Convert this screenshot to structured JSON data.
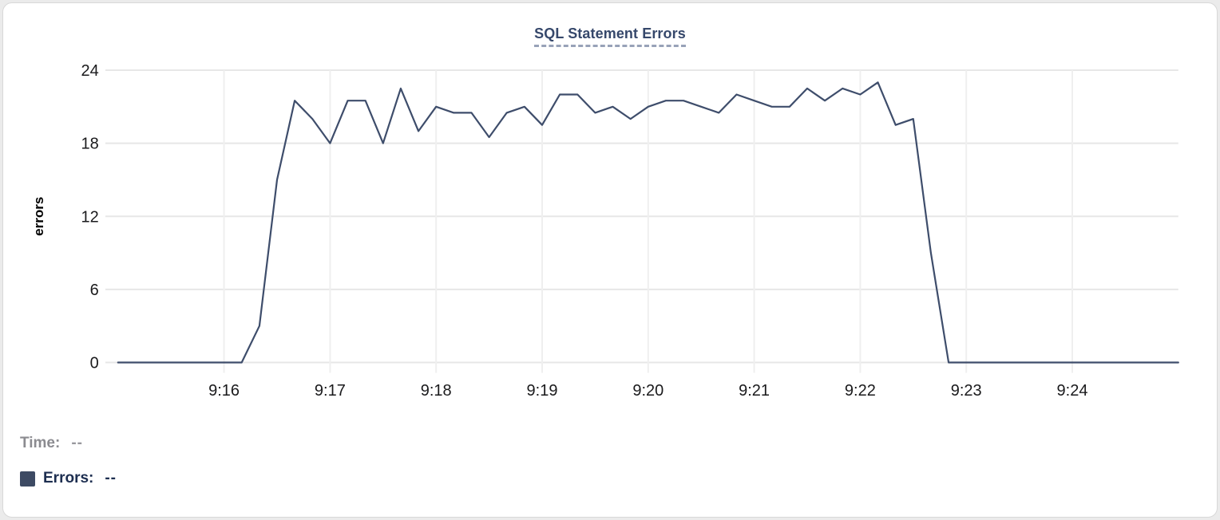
{
  "chart": {
    "title": "SQL Statement Errors",
    "ylabel": "errors",
    "line_color": "#3e4d6b",
    "grid_color_h": "#e7e7e7",
    "grid_color_v": "#efefef",
    "tick_label_color": "#1a1a1c",
    "title_color": "#36486b",
    "title_underline_color": "#98a2b8"
  },
  "chart_data": {
    "type": "line",
    "title": "SQL Statement Errors",
    "xlabel": "",
    "ylabel": "errors",
    "ylim": [
      0,
      24
    ],
    "y_ticks": [
      0,
      6,
      12,
      18,
      24
    ],
    "x_ticks": [
      "9:16",
      "9:17",
      "9:18",
      "9:19",
      "9:20",
      "9:21",
      "9:22",
      "9:23",
      "9:24"
    ],
    "grid": true,
    "legend_position": "none",
    "series_name": "Errors",
    "x": [
      "9:15:00",
      "9:15:10",
      "9:15:20",
      "9:15:30",
      "9:15:40",
      "9:15:50",
      "9:16:00",
      "9:16:10",
      "9:16:20",
      "9:16:30",
      "9:16:40",
      "9:16:50",
      "9:17:00",
      "9:17:10",
      "9:17:20",
      "9:17:30",
      "9:17:40",
      "9:17:50",
      "9:18:00",
      "9:18:10",
      "9:18:20",
      "9:18:30",
      "9:18:40",
      "9:18:50",
      "9:19:00",
      "9:19:10",
      "9:19:20",
      "9:19:30",
      "9:19:40",
      "9:19:50",
      "9:20:00",
      "9:20:10",
      "9:20:20",
      "9:20:30",
      "9:20:40",
      "9:20:50",
      "9:21:00",
      "9:21:10",
      "9:21:20",
      "9:21:30",
      "9:21:40",
      "9:21:50",
      "9:22:00",
      "9:22:10",
      "9:22:20",
      "9:22:30",
      "9:22:40",
      "9:22:50",
      "9:23:00",
      "9:23:10",
      "9:23:20",
      "9:23:30",
      "9:23:40",
      "9:23:50",
      "9:24:00",
      "9:24:10",
      "9:24:20",
      "9:24:30",
      "9:24:40",
      "9:24:50",
      "9:25:00"
    ],
    "values": [
      0,
      0,
      0,
      0,
      0,
      0,
      0,
      0,
      3,
      15,
      21.5,
      20,
      18,
      21.5,
      21.5,
      18,
      22.5,
      19,
      21,
      20.5,
      20.5,
      18.5,
      20.5,
      21,
      19.5,
      22,
      22,
      20.5,
      21,
      20,
      21,
      21.5,
      21.5,
      21,
      20.5,
      22,
      21.5,
      21,
      21,
      22.5,
      21.5,
      22.5,
      22,
      23,
      19.5,
      20,
      9,
      0,
      0,
      0,
      0,
      0,
      0,
      0,
      0,
      0,
      0,
      0,
      0,
      0,
      0
    ]
  },
  "tooltip": {
    "time_label": "Time:",
    "time_value": "--",
    "errors_label": "Errors:",
    "errors_value": "--",
    "swatch_color": "#3d4a63"
  }
}
